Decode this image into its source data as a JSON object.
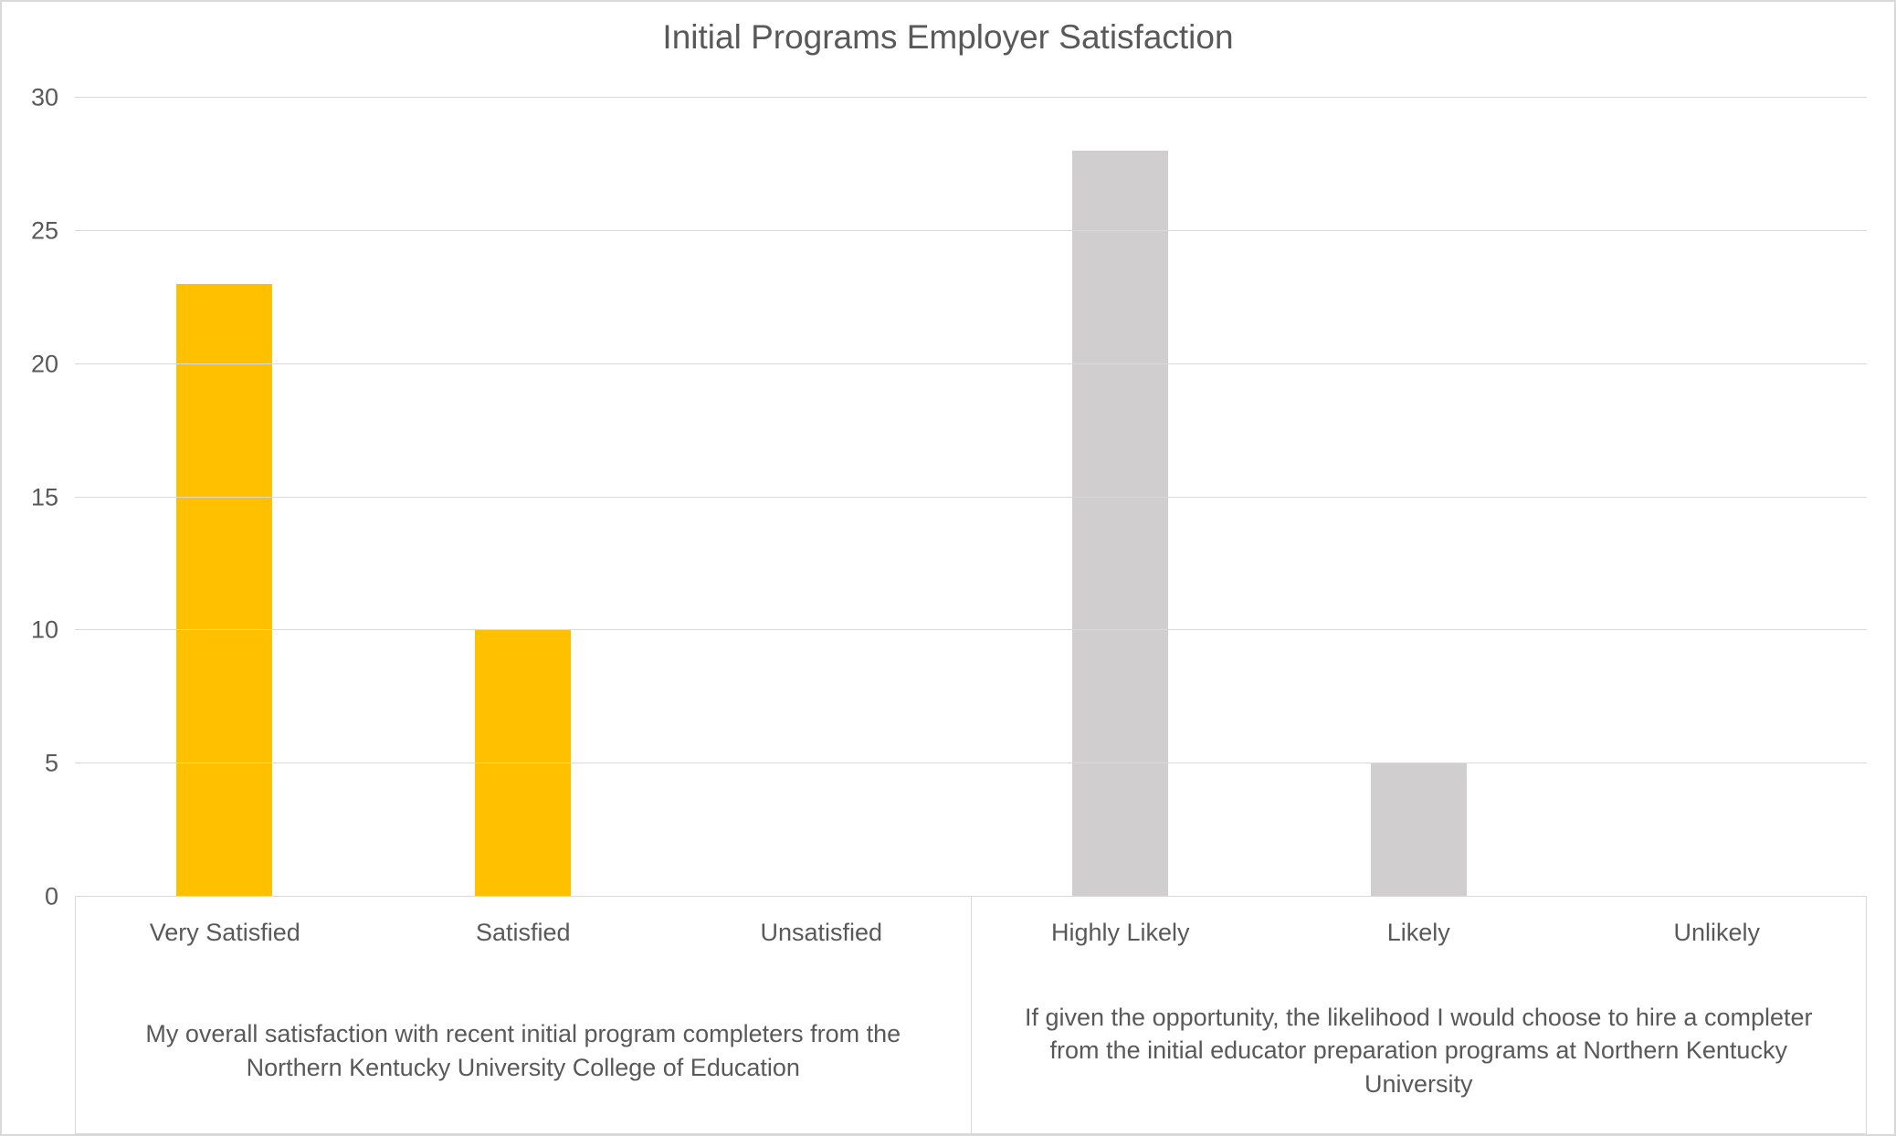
{
  "chart": {
    "type": "bar",
    "title": "Initial Programs Employer Satisfaction",
    "title_fontsize": 37,
    "title_color": "#595959",
    "background_color": "#ffffff",
    "border_color": "#d9d9d9",
    "grid_color": "#d9d9d9",
    "axis_label_color": "#595959",
    "tick_fontsize": 27,
    "category_fontsize": 27,
    "group_label_fontsize": 27,
    "ylim": [
      0,
      30
    ],
    "ytick_step": 5,
    "yticks": [
      0,
      5,
      10,
      15,
      20,
      25,
      30
    ],
    "bar_width_ratio": 0.32,
    "groups": [
      {
        "label": "My overall satisfaction with recent initial program completers from the Northern Kentucky University College of Education",
        "series_color": "#ffc000",
        "categories": [
          "Very Satisfied",
          "Satisfied",
          "Unsatisfied"
        ],
        "values": [
          23,
          10,
          0
        ]
      },
      {
        "label": "If given the opportunity, the likelihood I would choose to hire a completer from the initial educator preparation programs at Northern Kentucky University",
        "series_color": "#d0cece",
        "categories": [
          "Highly Likely",
          "Likely",
          "Unlikely"
        ],
        "values": [
          28,
          5,
          0
        ]
      }
    ]
  }
}
